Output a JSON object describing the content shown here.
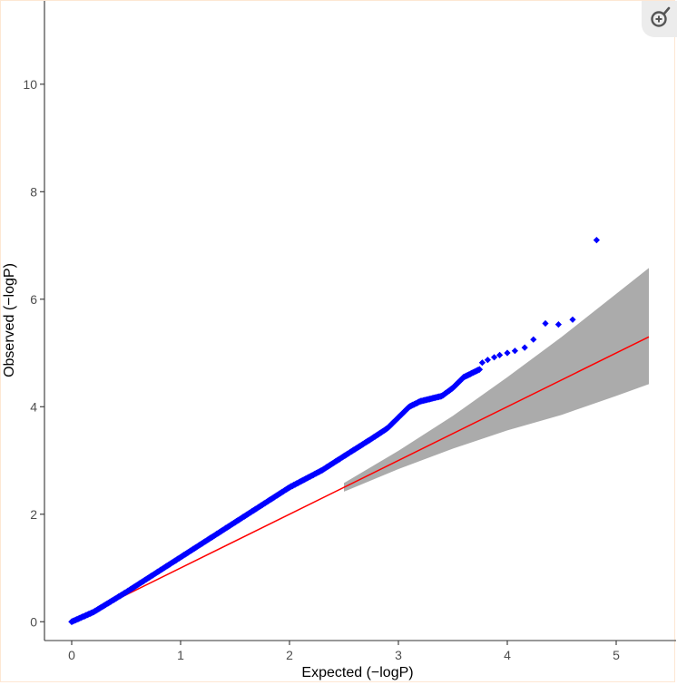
{
  "chart_data": {
    "type": "scatter",
    "title": "",
    "xlabel": "Expected (−logP)",
    "ylabel": "Observed (−logP)",
    "xlim": [
      -0.25,
      5.55
    ],
    "ylim": [
      -0.35,
      11.55
    ],
    "x_ticks": [
      0,
      1,
      2,
      3,
      4,
      5
    ],
    "y_ticks": [
      0,
      2,
      4,
      6,
      8,
      10
    ],
    "x_tick_labels": [
      "0",
      "1",
      "2",
      "3",
      "4",
      "5"
    ],
    "y_tick_labels": [
      "0",
      "2",
      "4",
      "6",
      "8",
      "10"
    ],
    "grid": false,
    "colors": {
      "points": "#0000ff",
      "reference_line": "#ff0000",
      "confidence_band": "#a6a6a6"
    },
    "reference_line": {
      "x": [
        0,
        5.3
      ],
      "y": [
        0,
        5.3
      ]
    },
    "confidence_band": {
      "x": [
        2.5,
        3.0,
        3.5,
        4.0,
        4.5,
        5.0,
        5.3
      ],
      "upper": [
        2.58,
        3.18,
        3.83,
        4.55,
        5.3,
        6.1,
        6.58
      ],
      "lower": [
        2.42,
        2.84,
        3.22,
        3.56,
        3.85,
        4.2,
        4.42
      ]
    },
    "observed_curve": {
      "x": [
        0,
        0.2,
        0.5,
        1.0,
        1.5,
        2.0,
        2.3,
        2.5,
        2.75,
        2.9,
        3.0,
        3.1,
        3.2,
        3.4,
        3.5,
        3.6,
        3.7,
        3.75
      ],
      "y": [
        0,
        0.18,
        0.55,
        1.2,
        1.85,
        2.5,
        2.82,
        3.08,
        3.4,
        3.6,
        3.8,
        4.0,
        4.1,
        4.2,
        4.35,
        4.55,
        4.65,
        4.7
      ]
    },
    "top_points": [
      {
        "x": 3.77,
        "y": 4.82
      },
      {
        "x": 3.82,
        "y": 4.87
      },
      {
        "x": 3.88,
        "y": 4.92
      },
      {
        "x": 3.93,
        "y": 4.96
      },
      {
        "x": 4.0,
        "y": 5.0
      },
      {
        "x": 4.07,
        "y": 5.04
      },
      {
        "x": 4.16,
        "y": 5.1
      },
      {
        "x": 4.24,
        "y": 5.25
      },
      {
        "x": 4.35,
        "y": 5.55
      },
      {
        "x": 4.47,
        "y": 5.53
      },
      {
        "x": 4.6,
        "y": 5.62
      },
      {
        "x": 4.82,
        "y": 7.1
      }
    ]
  }
}
